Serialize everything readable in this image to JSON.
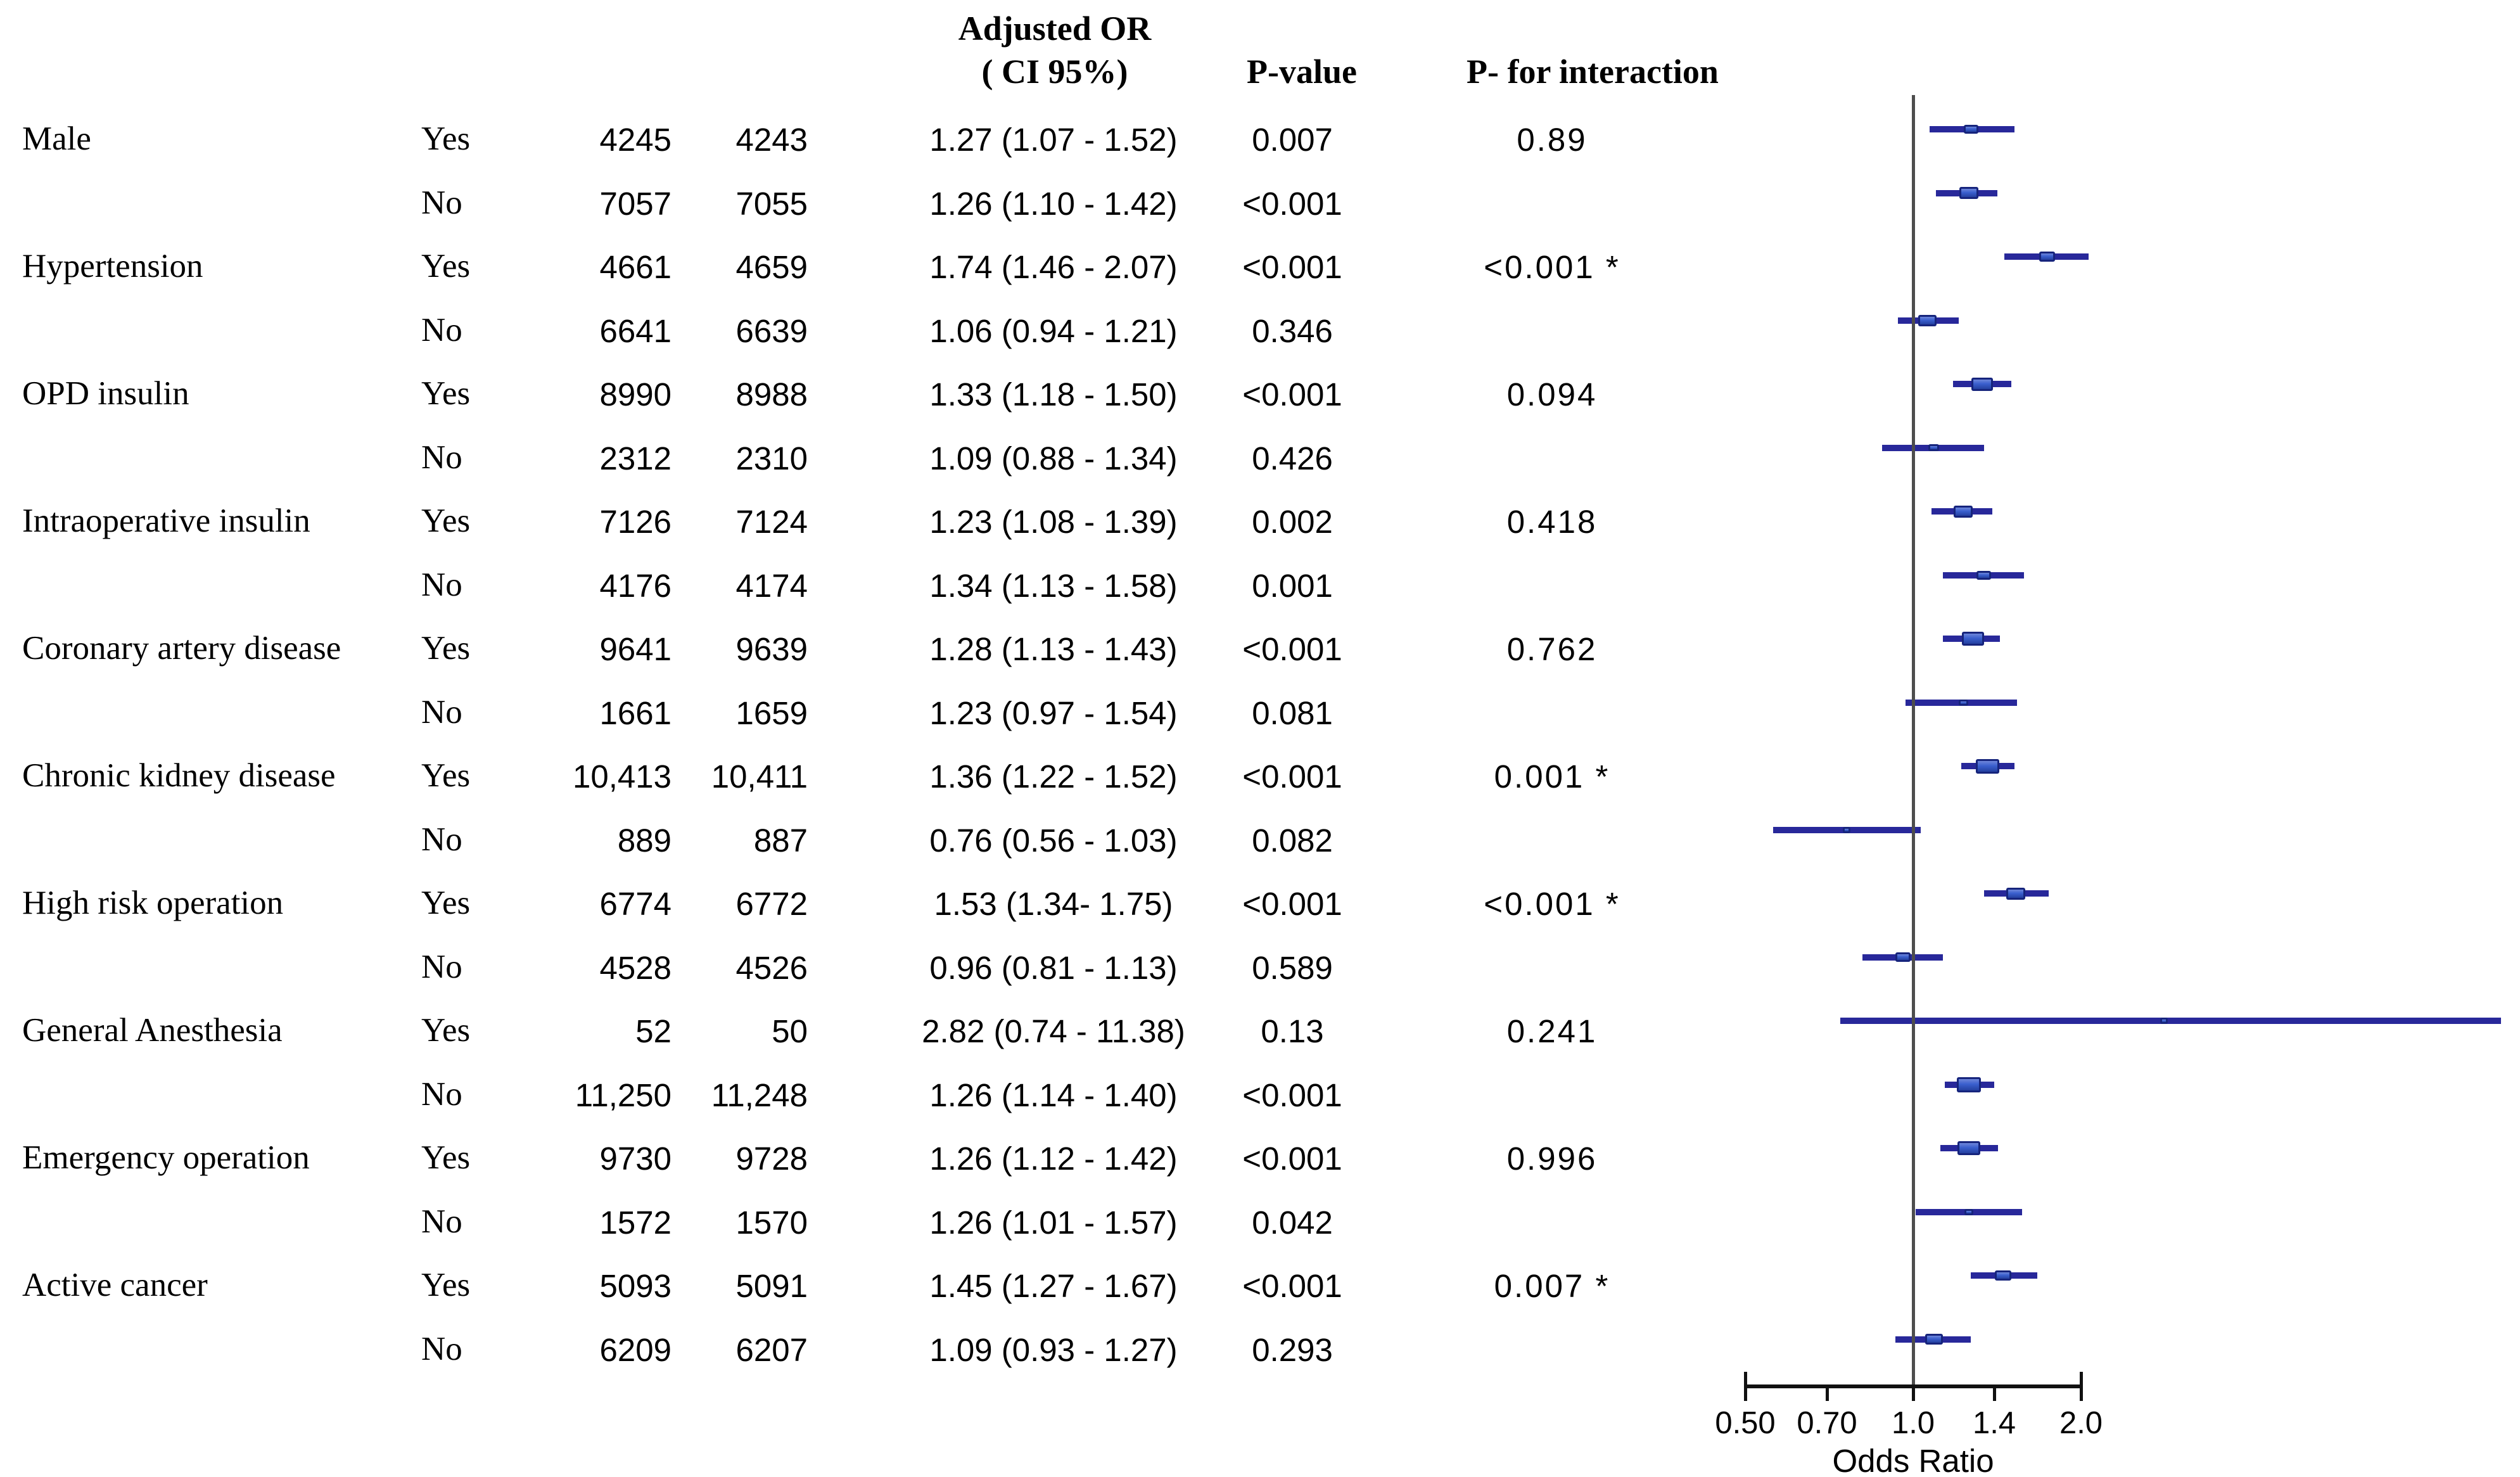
{
  "figure": {
    "headers": {
      "adjusted_or_line1": "Adjusted OR",
      "adjusted_or_line2": "( CI 95%)",
      "p_value": "P-value",
      "p_interaction": "P- for interaction"
    },
    "axis_label": "Odds Ratio"
  },
  "colors": {
    "ci_line": "#28289a",
    "box_fill": "#3a5fce",
    "box_fill_top": "#6e86da",
    "box_fill_bottom": "#24409f",
    "box_border": "#16247c",
    "reference_line": "#4d4d4d",
    "axis": "#111111",
    "text": "#000000"
  },
  "chart_data": {
    "type": "forest",
    "x_scale": "log",
    "xlabel": "Odds Ratio",
    "x_ticks": [
      0.5,
      0.7,
      1.0,
      1.4,
      2.0
    ],
    "x_tick_labels": [
      "0.50",
      "0.70",
      "1.0",
      "1.4",
      "2.0"
    ],
    "x_range": [
      0.45,
      11.5
    ],
    "reference_line": 1.0,
    "grid": false,
    "columns": [
      "group",
      "subgroup",
      "n1",
      "n2",
      "adjusted_or_ci",
      "p_value",
      "p_interaction"
    ],
    "rows": [
      {
        "group": "Male",
        "subgroup": "Yes",
        "n1": "4245",
        "n2": "4243",
        "or_ci": "1.27 (1.07 - 1.52)",
        "or": 1.27,
        "lo": 1.07,
        "hi": 1.52,
        "p": "0.007",
        "p_int": "0.89"
      },
      {
        "group": "",
        "subgroup": "No",
        "n1": "7057",
        "n2": "7055",
        "or_ci": "1.26 (1.10 - 1.42)",
        "or": 1.26,
        "lo": 1.1,
        "hi": 1.42,
        "p": "<0.001",
        "p_int": ""
      },
      {
        "group": "Hypertension",
        "subgroup": "Yes",
        "n1": "4661",
        "n2": "4659",
        "or_ci": "1.74 (1.46 - 2.07)",
        "or": 1.74,
        "lo": 1.46,
        "hi": 2.07,
        "p": "<0.001",
        "p_int": "<0.001 *"
      },
      {
        "group": "",
        "subgroup": "No",
        "n1": "6641",
        "n2": "6639",
        "or_ci": "1.06 (0.94 - 1.21)",
        "or": 1.06,
        "lo": 0.94,
        "hi": 1.21,
        "p": "0.346",
        "p_int": ""
      },
      {
        "group": "OPD insulin",
        "subgroup": "Yes",
        "n1": "8990",
        "n2": "8988",
        "or_ci": "1.33 (1.18 - 1.50)",
        "or": 1.33,
        "lo": 1.18,
        "hi": 1.5,
        "p": "<0.001",
        "p_int": "0.094"
      },
      {
        "group": "",
        "subgroup": "No",
        "n1": "2312",
        "n2": "2310",
        "or_ci": "1.09 (0.88 - 1.34)",
        "or": 1.09,
        "lo": 0.88,
        "hi": 1.34,
        "p": "0.426",
        "p_int": ""
      },
      {
        "group": "Intraoperative insulin",
        "subgroup": "Yes",
        "n1": "7126",
        "n2": "7124",
        "or_ci": "1.23 (1.08 - 1.39)",
        "or": 1.23,
        "lo": 1.08,
        "hi": 1.39,
        "p": "0.002",
        "p_int": "0.418"
      },
      {
        "group": "",
        "subgroup": "No",
        "n1": "4176",
        "n2": "4174",
        "or_ci": "1.34 (1.13 - 1.58)",
        "or": 1.34,
        "lo": 1.13,
        "hi": 1.58,
        "p": "0.001",
        "p_int": ""
      },
      {
        "group": "Coronary artery disease",
        "subgroup": "Yes",
        "n1": "9641",
        "n2": "9639",
        "or_ci": "1.28 (1.13 - 1.43)",
        "or": 1.28,
        "lo": 1.13,
        "hi": 1.43,
        "p": "<0.001",
        "p_int": "0.762"
      },
      {
        "group": "",
        "subgroup": "No",
        "n1": "1661",
        "n2": "1659",
        "or_ci": "1.23 (0.97 - 1.54)",
        "or": 1.23,
        "lo": 0.97,
        "hi": 1.54,
        "p": "0.081",
        "p_int": ""
      },
      {
        "group": "Chronic kidney disease",
        "subgroup": "Yes",
        "n1": "10,413",
        "n2": "10,411",
        "or_ci": "1.36 (1.22 - 1.52)",
        "or": 1.36,
        "lo": 1.22,
        "hi": 1.52,
        "p": "<0.001",
        "p_int": "0.001 *"
      },
      {
        "group": "",
        "subgroup": "No",
        "n1": "889",
        "n2": "887",
        "or_ci": "0.76 (0.56 - 1.03)",
        "or": 0.76,
        "lo": 0.56,
        "hi": 1.03,
        "p": "0.082",
        "p_int": ""
      },
      {
        "group": "High risk operation",
        "subgroup": "Yes",
        "n1": "6774",
        "n2": "6772",
        "or_ci": "1.53 (1.34- 1.75)",
        "or": 1.53,
        "lo": 1.34,
        "hi": 1.75,
        "p": "<0.001",
        "p_int": "<0.001 *"
      },
      {
        "group": "",
        "subgroup": "No",
        "n1": "4528",
        "n2": "4526",
        "or_ci": "0.96 (0.81 - 1.13)",
        "or": 0.96,
        "lo": 0.81,
        "hi": 1.13,
        "p": "0.589",
        "p_int": ""
      },
      {
        "group": "General Anesthesia",
        "subgroup": "Yes",
        "n1": "52",
        "n2": "50",
        "or_ci": "2.82 (0.74 - 11.38)",
        "or": 2.82,
        "lo": 0.74,
        "hi": 11.38,
        "p": "0.13",
        "p_int": "0.241"
      },
      {
        "group": "",
        "subgroup": "No",
        "n1": "11,250",
        "n2": "11,248",
        "or_ci": "1.26 (1.14 - 1.40)",
        "or": 1.26,
        "lo": 1.14,
        "hi": 1.4,
        "p": "<0.001",
        "p_int": ""
      },
      {
        "group": "Emergency operation",
        "subgroup": "Yes",
        "n1": "9730",
        "n2": "9728",
        "or_ci": "1.26 (1.12 - 1.42)",
        "or": 1.26,
        "lo": 1.12,
        "hi": 1.42,
        "p": "<0.001",
        "p_int": "0.996"
      },
      {
        "group": "",
        "subgroup": "No",
        "n1": "1572",
        "n2": "1570",
        "or_ci": "1.26 (1.01 - 1.57)",
        "or": 1.26,
        "lo": 1.01,
        "hi": 1.57,
        "p": "0.042",
        "p_int": ""
      },
      {
        "group": "Active cancer",
        "subgroup": "Yes",
        "n1": "5093",
        "n2": "5091",
        "or_ci": "1.45 (1.27 - 1.67)",
        "or": 1.45,
        "lo": 1.27,
        "hi": 1.67,
        "p": "<0.001",
        "p_int": "0.007 *"
      },
      {
        "group": "",
        "subgroup": "No",
        "n1": "6209",
        "n2": "6207",
        "or_ci": "1.09 (0.93 - 1.27)",
        "or": 1.09,
        "lo": 0.93,
        "hi": 1.27,
        "p": "0.293",
        "p_int": ""
      }
    ]
  }
}
